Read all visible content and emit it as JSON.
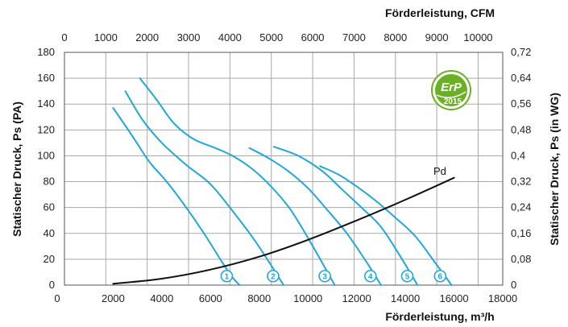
{
  "chart_data": {
    "type": "line",
    "x_label": "Förderleistung, m³/h",
    "x_label_top": "Förderleistung, CFM",
    "y_label": "Statischer Druck, Ps (PA)",
    "y_label_right": "Statischer Druck, Ps (in WG)",
    "xlim": [
      0,
      18000
    ],
    "ylim": [
      0,
      180
    ],
    "x_ticks": [
      "0",
      "2000",
      "4000",
      "6000",
      "8000",
      "10000",
      "12000",
      "14000",
      "16000",
      "18000"
    ],
    "x_tick_values": [
      0,
      2000,
      4000,
      6000,
      8000,
      10000,
      12000,
      14000,
      16000,
      18000
    ],
    "y_ticks": [
      "0",
      "20",
      "40",
      "60",
      "80",
      "100",
      "120",
      "140",
      "160",
      "180"
    ],
    "y_tick_values": [
      0,
      20,
      40,
      60,
      80,
      100,
      120,
      140,
      160,
      180
    ],
    "top_ticks": [
      "0",
      "1000",
      "2000",
      "3000",
      "4000",
      "5000",
      "6000",
      "7000",
      "8000",
      "9000",
      "10000"
    ],
    "top_tick_values": [
      0,
      1000,
      2000,
      3000,
      4000,
      5000,
      6000,
      7000,
      8000,
      9000,
      10000
    ],
    "right_ticks": [
      "0",
      "0,08",
      "0,16",
      "0,24",
      "0,32",
      "0,4",
      "0,48",
      "0,56",
      "0,64",
      "0,72"
    ],
    "right_tick_values": [
      0,
      20,
      40,
      60,
      80,
      100,
      120,
      140,
      160,
      180
    ],
    "grid": true,
    "series": [
      {
        "marker": "1",
        "color": "#1fa8d8",
        "x": [
          2000,
          2800,
          3500,
          4200,
          5000,
          5800,
          6400,
          6900,
          7200
        ],
        "y": [
          137,
          115,
          95,
          80,
          60,
          38,
          20,
          6,
          0
        ]
      },
      {
        "marker": "2",
        "color": "#1fa8d8",
        "x": [
          2500,
          3200,
          4000,
          5000,
          6000,
          7000,
          7800,
          8500,
          9000
        ],
        "y": [
          150,
          128,
          110,
          93,
          78,
          55,
          35,
          15,
          0
        ]
      },
      {
        "marker": "3",
        "color": "#1fa8d8",
        "x": [
          3100,
          3800,
          4500,
          5300,
          6200,
          6900,
          7700,
          8500,
          9300,
          10200,
          11100
        ],
        "y": [
          160,
          143,
          125,
          113,
          106,
          100,
          90,
          76,
          58,
          30,
          0
        ]
      },
      {
        "marker": "4",
        "color": "#1fa8d8",
        "x": [
          7600,
          8400,
          9200,
          10000,
          10800,
          11600,
          12400,
          13000
        ],
        "y": [
          106,
          98,
          88,
          75,
          58,
          40,
          18,
          0
        ]
      },
      {
        "marker": "5",
        "color": "#1fa8d8",
        "x": [
          8600,
          9600,
          10600,
          11400,
          12200,
          13000,
          13800,
          14500
        ],
        "y": [
          107,
          100,
          88,
          74,
          60,
          45,
          22,
          0
        ]
      },
      {
        "marker": "6",
        "color": "#1fa8d8",
        "x": [
          10500,
          11300,
          12100,
          12800,
          13600,
          14400,
          15200,
          15900
        ],
        "y": [
          92,
          85,
          75,
          65,
          52,
          38,
          18,
          0
        ]
      },
      {
        "name": "Pd",
        "color": "#111111",
        "x": [
          2000,
          4000,
          6000,
          8000,
          10000,
          12000,
          14000,
          16000
        ],
        "y": [
          1,
          5,
          12,
          22,
          35,
          50,
          66,
          83
        ]
      }
    ]
  },
  "badge": {
    "line1": "ErP",
    "line2": "2015",
    "color": "#6ab023"
  }
}
